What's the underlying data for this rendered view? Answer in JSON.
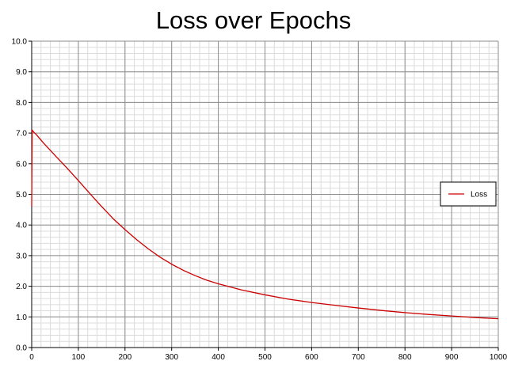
{
  "chart_data": {
    "type": "line",
    "title": "Loss over Epochs",
    "xlabel": "",
    "ylabel": "",
    "xlim": [
      0,
      1000
    ],
    "ylim": [
      0,
      10
    ],
    "x_ticks": [
      0,
      100,
      200,
      300,
      400,
      500,
      600,
      700,
      800,
      900,
      1000
    ],
    "y_ticks": [
      "0.0",
      "1.0",
      "2.0",
      "3.0",
      "4.0",
      "5.0",
      "6.0",
      "7.0",
      "8.0",
      "9.0",
      "10.0"
    ],
    "grid": true,
    "legend": "right",
    "series": [
      {
        "name": "Loss",
        "color": "#cc0000",
        "x": [
          0,
          1,
          2,
          3,
          5,
          10,
          25,
          50,
          75,
          100,
          125,
          150,
          175,
          200,
          225,
          250,
          275,
          300,
          325,
          350,
          375,
          400,
          450,
          500,
          550,
          600,
          650,
          700,
          750,
          800,
          850,
          900,
          950,
          1000
        ],
        "y": [
          4.6,
          7.1,
          7.08,
          7.06,
          7.02,
          6.95,
          6.68,
          6.27,
          5.87,
          5.45,
          5.02,
          4.6,
          4.2,
          3.85,
          3.52,
          3.22,
          2.95,
          2.72,
          2.52,
          2.35,
          2.2,
          2.08,
          1.88,
          1.72,
          1.58,
          1.47,
          1.38,
          1.29,
          1.21,
          1.14,
          1.08,
          1.03,
          0.98,
          0.94
        ]
      }
    ]
  }
}
